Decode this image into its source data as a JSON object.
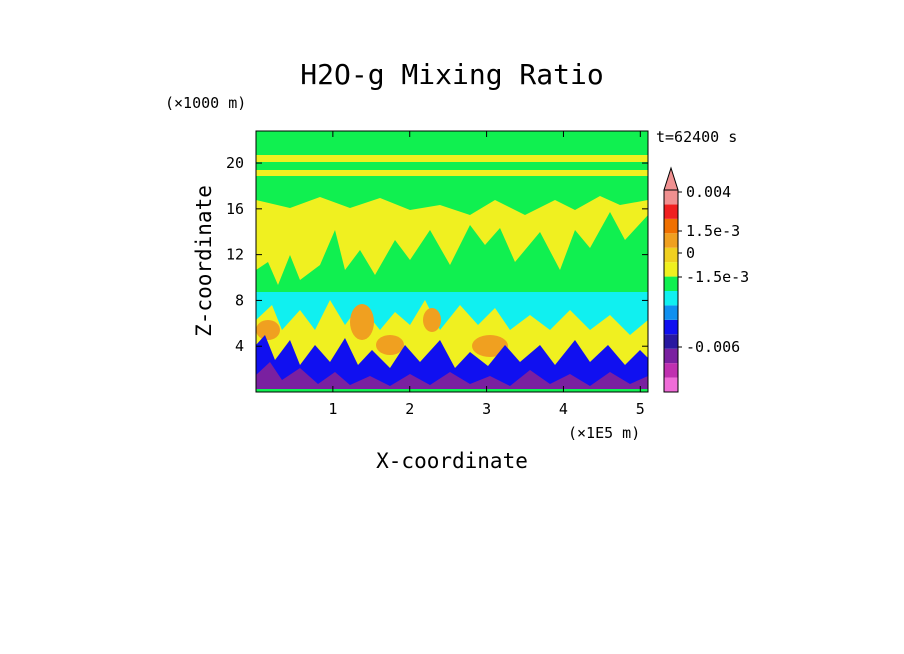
{
  "chart_data": {
    "type": "heatmap",
    "title": "H2O-g Mixing Ratio",
    "xlabel": "X-coordinate",
    "ylabel": "Z-coordinate",
    "x_unit": "(×1E5 m)",
    "y_unit": "(×1000 m)",
    "time_label": "t=62400 s",
    "x_ticks": [
      "1",
      "2",
      "3",
      "4",
      "5"
    ],
    "y_ticks": [
      "4",
      "8",
      "12",
      "16",
      "20"
    ],
    "xlim": [
      0,
      5.1
    ],
    "ylim": [
      0,
      22.8
    ],
    "colorbar": {
      "tick_labels": [
        "0.004",
        "1.5e-3",
        "0",
        "-1.5e-3",
        "-0.006"
      ],
      "levels": [
        {
          "color": "#f06cd8"
        },
        {
          "color": "#c030b0"
        },
        {
          "color": "#7a20a0"
        },
        {
          "color": "#2818a0"
        },
        {
          "color": "#1010f0"
        },
        {
          "color": "#1090f0"
        },
        {
          "color": "#10f0f0"
        },
        {
          "color": "#10f050"
        },
        {
          "color": "#f0f020"
        },
        {
          "color": "#f0d020"
        },
        {
          "color": "#f0a020"
        },
        {
          "color": "#f07000"
        },
        {
          "color": "#f02020"
        },
        {
          "color": "#f09090"
        }
      ]
    }
  }
}
